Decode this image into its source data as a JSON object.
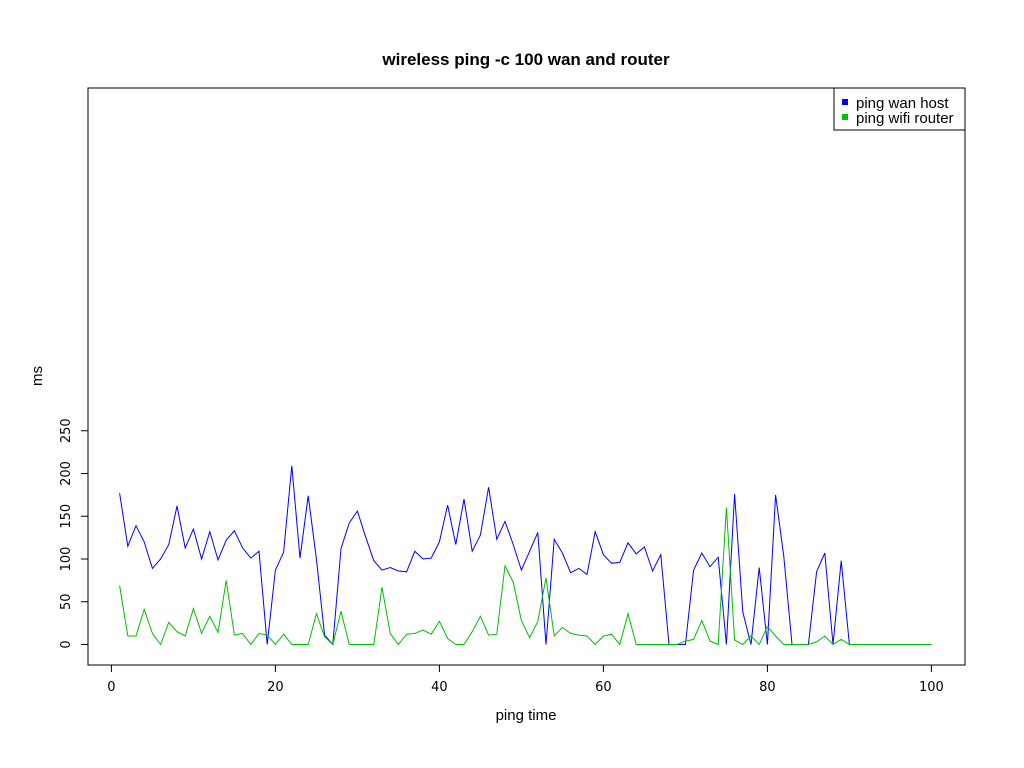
{
  "chart_data": {
    "type": "line",
    "title": "wireless ping -c 100 wan and router",
    "xlabel": "ping time",
    "ylabel": "ms",
    "xlim": [
      1,
      100
    ],
    "ylim": [
      0,
      250
    ],
    "xticks": [
      0,
      20,
      40,
      60,
      80,
      100
    ],
    "yticks": [
      0,
      50,
      100,
      150,
      200,
      250
    ],
    "grid": false,
    "legend_position": "top-right",
    "series": [
      {
        "name": "ping wan host",
        "color": "#0000ff",
        "x": [
          1,
          2,
          3,
          4,
          5,
          6,
          7,
          8,
          9,
          10,
          11,
          12,
          13,
          14,
          15,
          16,
          17,
          18,
          19,
          20,
          21,
          22,
          23,
          24,
          25,
          26,
          27,
          28,
          29,
          30,
          31,
          32,
          33,
          34,
          35,
          36,
          37,
          38,
          39,
          40,
          41,
          42,
          43,
          44,
          45,
          46,
          47,
          48,
          49,
          50,
          51,
          52,
          53,
          54,
          55,
          56,
          57,
          58,
          59,
          60,
          61,
          62,
          63,
          64,
          65,
          66,
          67,
          68,
          69,
          70,
          71,
          72,
          73,
          74,
          75,
          76,
          77,
          78,
          79,
          80,
          81,
          82,
          83,
          84,
          85,
          86,
          87,
          88,
          89,
          90,
          91,
          92,
          93,
          94,
          95,
          96,
          97,
          98,
          99,
          100
        ],
        "values": [
          177,
          115,
          139,
          120,
          89,
          100,
          117,
          162,
          113,
          135,
          100,
          132,
          99,
          122,
          133,
          113,
          101,
          109,
          0,
          87,
          108,
          209,
          101,
          174,
          100,
          11,
          0,
          112,
          142,
          156,
          126,
          98,
          87,
          90,
          86,
          85,
          109,
          100,
          101,
          120,
          163,
          117,
          170,
          109,
          128,
          184,
          123,
          144,
          117,
          87,
          109,
          131,
          0,
          123,
          107,
          84,
          89,
          82,
          132,
          105,
          95,
          96,
          119,
          106,
          114,
          86,
          105,
          0,
          0,
          0,
          87,
          107,
          91,
          102,
          0,
          176,
          38,
          0,
          90,
          0,
          175,
          103,
          0,
          0,
          0,
          85,
          107,
          0,
          98,
          0,
          0,
          0,
          0,
          0,
          0,
          0,
          0,
          0,
          0,
          0
        ]
      },
      {
        "name": "ping wifi router",
        "color": "#00c000",
        "x": [
          1,
          2,
          3,
          4,
          5,
          6,
          7,
          8,
          9,
          10,
          11,
          12,
          13,
          14,
          15,
          16,
          17,
          18,
          19,
          20,
          21,
          22,
          23,
          24,
          25,
          26,
          27,
          28,
          29,
          30,
          31,
          32,
          33,
          34,
          35,
          36,
          37,
          38,
          39,
          40,
          41,
          42,
          43,
          44,
          45,
          46,
          47,
          48,
          49,
          50,
          51,
          52,
          53,
          54,
          55,
          56,
          57,
          58,
          59,
          60,
          61,
          62,
          63,
          64,
          65,
          66,
          67,
          68,
          69,
          70,
          71,
          72,
          73,
          74,
          75,
          76,
          77,
          78,
          79,
          80,
          81,
          82,
          83,
          84,
          85,
          86,
          87,
          88,
          89,
          90,
          91,
          92,
          93,
          94,
          95,
          96,
          97,
          98,
          99,
          100
        ],
        "values": [
          69,
          10,
          10,
          41,
          13,
          0,
          26,
          15,
          10,
          42,
          13,
          33,
          14,
          75,
          11,
          13,
          0,
          13,
          11,
          0,
          12,
          0,
          0,
          0,
          36,
          9,
          0,
          39,
          0,
          0,
          0,
          0,
          67,
          13,
          0,
          12,
          13,
          17,
          12,
          27,
          7,
          0,
          0,
          15,
          33,
          11,
          12,
          92,
          73,
          28,
          8,
          27,
          78,
          10,
          20,
          13,
          11,
          10,
          0,
          10,
          12,
          0,
          36,
          0,
          0,
          0,
          0,
          0,
          0,
          4,
          6,
          28,
          4,
          0,
          160,
          5,
          0,
          10,
          0,
          21,
          10,
          0,
          0,
          0,
          0,
          3,
          10,
          0,
          6,
          0,
          0,
          0,
          0,
          0,
          0,
          0,
          0,
          0,
          0,
          0
        ]
      }
    ]
  }
}
